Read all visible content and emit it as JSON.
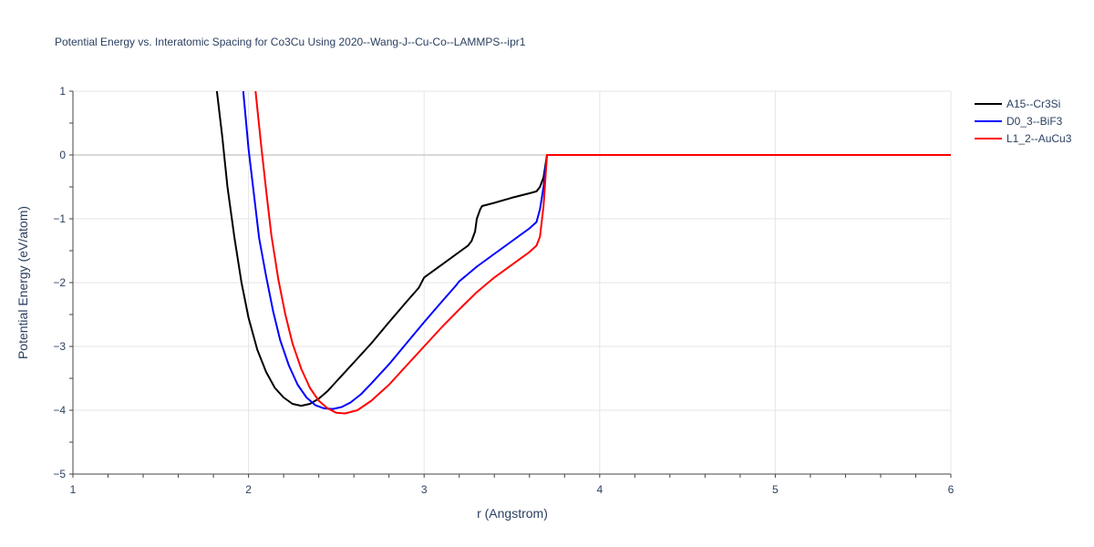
{
  "chart_data": {
    "type": "line",
    "title": "Potential Energy vs. Interatomic Spacing for Co3Cu Using 2020--Wang-J--Cu-Co--LAMMPS--ipr1",
    "xlabel": "r (Angstrom)",
    "ylabel": "Potential Energy (eV/atom)",
    "xlim": [
      1,
      6
    ],
    "ylim": [
      -5,
      1
    ],
    "xticks": [
      1,
      2,
      3,
      4,
      5,
      6
    ],
    "yticks": [
      1,
      0,
      -1,
      -2,
      -3,
      -4,
      -5
    ],
    "ytick_labels": [
      "1",
      "0",
      "−1",
      "−2",
      "−3",
      "−4",
      "−5"
    ],
    "grid": true,
    "legend_position": "top-right",
    "series": [
      {
        "name": "A15--Cr3Si",
        "color": "#000000",
        "points": [
          [
            1.82,
            1.0
          ],
          [
            1.85,
            0.3
          ],
          [
            1.88,
            -0.5
          ],
          [
            1.92,
            -1.3
          ],
          [
            1.96,
            -2.0
          ],
          [
            2.0,
            -2.55
          ],
          [
            2.05,
            -3.05
          ],
          [
            2.1,
            -3.4
          ],
          [
            2.15,
            -3.65
          ],
          [
            2.2,
            -3.8
          ],
          [
            2.25,
            -3.9
          ],
          [
            2.3,
            -3.93
          ],
          [
            2.35,
            -3.9
          ],
          [
            2.4,
            -3.82
          ],
          [
            2.45,
            -3.7
          ],
          [
            2.5,
            -3.55
          ],
          [
            2.6,
            -3.25
          ],
          [
            2.7,
            -2.95
          ],
          [
            2.8,
            -2.62
          ],
          [
            2.9,
            -2.3
          ],
          [
            2.97,
            -2.08
          ],
          [
            3.0,
            -1.92
          ],
          [
            3.02,
            -1.88
          ],
          [
            3.1,
            -1.72
          ],
          [
            3.2,
            -1.52
          ],
          [
            3.25,
            -1.42
          ],
          [
            3.27,
            -1.35
          ],
          [
            3.29,
            -1.2
          ],
          [
            3.3,
            -1.0
          ],
          [
            3.32,
            -0.85
          ],
          [
            3.33,
            -0.8
          ],
          [
            3.4,
            -0.75
          ],
          [
            3.5,
            -0.67
          ],
          [
            3.6,
            -0.6
          ],
          [
            3.64,
            -0.57
          ],
          [
            3.66,
            -0.5
          ],
          [
            3.68,
            -0.35
          ],
          [
            3.7,
            0.0
          ],
          [
            6.0,
            0.0
          ]
        ]
      },
      {
        "name": "D0_3--BiF3",
        "color": "#0000ff",
        "points": [
          [
            1.97,
            1.0
          ],
          [
            2.0,
            0.1
          ],
          [
            2.03,
            -0.6
          ],
          [
            2.06,
            -1.3
          ],
          [
            2.1,
            -1.9
          ],
          [
            2.14,
            -2.45
          ],
          [
            2.18,
            -2.9
          ],
          [
            2.23,
            -3.3
          ],
          [
            2.28,
            -3.6
          ],
          [
            2.33,
            -3.8
          ],
          [
            2.38,
            -3.92
          ],
          [
            2.43,
            -3.97
          ],
          [
            2.48,
            -3.98
          ],
          [
            2.53,
            -3.95
          ],
          [
            2.58,
            -3.88
          ],
          [
            2.64,
            -3.75
          ],
          [
            2.7,
            -3.58
          ],
          [
            2.8,
            -3.28
          ],
          [
            2.9,
            -2.95
          ],
          [
            3.0,
            -2.62
          ],
          [
            3.1,
            -2.3
          ],
          [
            3.18,
            -2.05
          ],
          [
            3.2,
            -1.98
          ],
          [
            3.3,
            -1.75
          ],
          [
            3.4,
            -1.55
          ],
          [
            3.5,
            -1.35
          ],
          [
            3.6,
            -1.15
          ],
          [
            3.64,
            -1.05
          ],
          [
            3.66,
            -0.85
          ],
          [
            3.68,
            -0.5
          ],
          [
            3.7,
            0.0
          ],
          [
            6.0,
            0.0
          ]
        ]
      },
      {
        "name": "L1_2--AuCu3",
        "color": "#ff0000",
        "points": [
          [
            2.04,
            1.0
          ],
          [
            2.07,
            0.2
          ],
          [
            2.1,
            -0.55
          ],
          [
            2.13,
            -1.25
          ],
          [
            2.17,
            -1.95
          ],
          [
            2.21,
            -2.5
          ],
          [
            2.25,
            -2.95
          ],
          [
            2.3,
            -3.35
          ],
          [
            2.35,
            -3.65
          ],
          [
            2.4,
            -3.85
          ],
          [
            2.45,
            -3.97
          ],
          [
            2.5,
            -4.04
          ],
          [
            2.55,
            -4.05
          ],
          [
            2.62,
            -4.0
          ],
          [
            2.7,
            -3.85
          ],
          [
            2.8,
            -3.6
          ],
          [
            2.9,
            -3.3
          ],
          [
            3.0,
            -3.0
          ],
          [
            3.1,
            -2.7
          ],
          [
            3.2,
            -2.42
          ],
          [
            3.3,
            -2.15
          ],
          [
            3.4,
            -1.92
          ],
          [
            3.5,
            -1.72
          ],
          [
            3.6,
            -1.52
          ],
          [
            3.64,
            -1.42
          ],
          [
            3.66,
            -1.28
          ],
          [
            3.68,
            -0.8
          ],
          [
            3.7,
            0.0
          ],
          [
            6.0,
            0.0
          ]
        ]
      }
    ]
  }
}
